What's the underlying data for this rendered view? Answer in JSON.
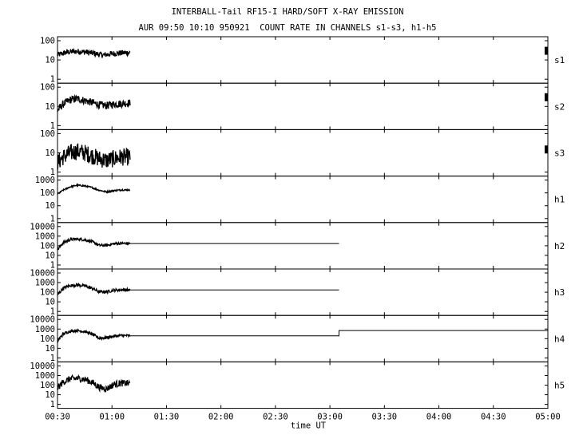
{
  "header": {
    "title": "INTERBALL-Tail RF15-I HARD/SOFT X-RAY EMISSION",
    "subtitle": "AUR 09:50 10:10 950921  COUNT RATE IN CHANNELS s1-s3, h1-h5"
  },
  "chart_data": {
    "type": "line",
    "log_y": true,
    "xlabel": "time UT",
    "x_range": [
      "00:30",
      "05:00"
    ],
    "x_ticks": [
      "00:30",
      "01:00",
      "01:30",
      "02:00",
      "02:30",
      "03:00",
      "03:30",
      "04:00",
      "04:30",
      "05:00"
    ],
    "panels": [
      {
        "name": "s1",
        "ylim": [
          1,
          100
        ],
        "y_ticks": [
          "100",
          "10",
          "1"
        ],
        "series": [
          {
            "x": [
              "00:30",
              "00:35",
              "00:40",
              "00:45",
              "00:50",
              "00:55",
              "01:00",
              "01:05",
              "01:10"
            ],
            "y": [
              18,
              25,
              28,
              26,
              22,
              18,
              21,
              23,
              24
            ],
            "noise": 0.15
          }
        ],
        "extra": [
          {
            "x": [
              "05:00"
            ],
            "y": [
              30
            ]
          }
        ]
      },
      {
        "name": "s2",
        "ylim": [
          1,
          100
        ],
        "y_ticks": [
          "100",
          "10",
          "1"
        ],
        "series": [
          {
            "x": [
              "00:30",
              "00:33",
              "00:37",
              "00:41",
              "00:45",
              "00:49",
              "00:53",
              "00:57",
              "01:01",
              "01:05",
              "01:10"
            ],
            "y": [
              6,
              13,
              22,
              25,
              20,
              16,
              12,
              11,
              13,
              14,
              15
            ],
            "noise": 0.2
          }
        ],
        "extra": [
          {
            "x": [
              "05:00"
            ],
            "y": [
              30
            ]
          }
        ]
      },
      {
        "name": "s3",
        "ylim": [
          1,
          100
        ],
        "y_ticks": [
          "100",
          "10",
          "1"
        ],
        "series": [
          {
            "x": [
              "00:30",
              "00:33",
              "00:37",
              "00:41",
              "00:45",
              "00:49",
              "00:53",
              "00:57",
              "01:01",
              "01:05",
              "01:10"
            ],
            "y": [
              3,
              6,
              10,
              12,
              10,
              7,
              5,
              4,
              5,
              6,
              6
            ],
            "noise": 0.45
          }
        ],
        "extra": [
          {
            "x": [
              "05:00"
            ],
            "y": [
              15
            ]
          }
        ]
      },
      {
        "name": "h1",
        "ylim": [
          1,
          1000
        ],
        "y_ticks": [
          "1000",
          "100",
          "10",
          "1"
        ],
        "series": [
          {
            "x": [
              "00:30",
              "00:33",
              "00:37",
              "00:41",
              "00:45",
              "00:49",
              "00:53",
              "00:57",
              "01:01",
              "01:05",
              "01:10"
            ],
            "y": [
              80,
              160,
              300,
              400,
              350,
              260,
              160,
              120,
              150,
              170,
              170
            ],
            "noise": 0.06
          }
        ],
        "extra": []
      },
      {
        "name": "h2",
        "ylim": [
          1,
          10000
        ],
        "y_ticks": [
          "10000",
          "1000",
          "100",
          "10",
          "1"
        ],
        "series": [
          {
            "x": [
              "00:30",
              "00:33",
              "00:37",
              "00:41",
              "00:45",
              "00:49",
              "00:53",
              "00:57",
              "01:01",
              "01:05",
              "01:10"
            ],
            "y": [
              40,
              200,
              450,
              500,
              420,
              260,
              110,
              110,
              160,
              180,
              170
            ],
            "noise": 0.15
          }
        ],
        "extra": [
          {
            "x": [
              "01:10",
              "03:05"
            ],
            "y": [
              170,
              170
            ]
          }
        ]
      },
      {
        "name": "h3",
        "ylim": [
          1,
          10000
        ],
        "y_ticks": [
          "10000",
          "1000",
          "100",
          "10",
          "1"
        ],
        "series": [
          {
            "x": [
              "00:30",
              "00:33",
              "00:37",
              "00:41",
              "00:45",
              "00:49",
              "00:53",
              "00:57",
              "01:01",
              "01:05",
              "01:10"
            ],
            "y": [
              50,
              250,
              500,
              550,
              450,
              260,
              110,
              110,
              160,
              180,
              170
            ],
            "noise": 0.15
          }
        ],
        "extra": [
          {
            "x": [
              "01:10",
              "03:05"
            ],
            "y": [
              170,
              170
            ]
          }
        ]
      },
      {
        "name": "h4",
        "ylim": [
          1,
          10000
        ],
        "y_ticks": [
          "10000",
          "1000",
          "100",
          "10",
          "1"
        ],
        "series": [
          {
            "x": [
              "00:30",
              "00:33",
              "00:37",
              "00:41",
              "00:45",
              "00:49",
              "00:53",
              "00:57",
              "01:01",
              "01:05",
              "01:10"
            ],
            "y": [
              60,
              300,
              600,
              700,
              550,
              300,
              110,
              130,
              180,
              210,
              200
            ],
            "noise": 0.15
          }
        ],
        "extra": [
          {
            "x": [
              "01:10",
              "03:05",
              "03:05",
              "05:00"
            ],
            "y": [
              200,
              200,
              700,
              700
            ]
          }
        ]
      },
      {
        "name": "h5",
        "ylim": [
          1,
          10000
        ],
        "y_ticks": [
          "10000",
          "1000",
          "100",
          "10",
          "1"
        ],
        "series": [
          {
            "x": [
              "00:30",
              "00:33",
              "00:37",
              "00:41",
              "00:45",
              "00:49",
              "00:53",
              "00:57",
              "01:01",
              "01:05",
              "01:10"
            ],
            "y": [
              50,
              200,
              450,
              500,
              400,
              200,
              60,
              40,
              120,
              160,
              150
            ],
            "noise": 0.35
          }
        ],
        "extra": []
      }
    ]
  }
}
